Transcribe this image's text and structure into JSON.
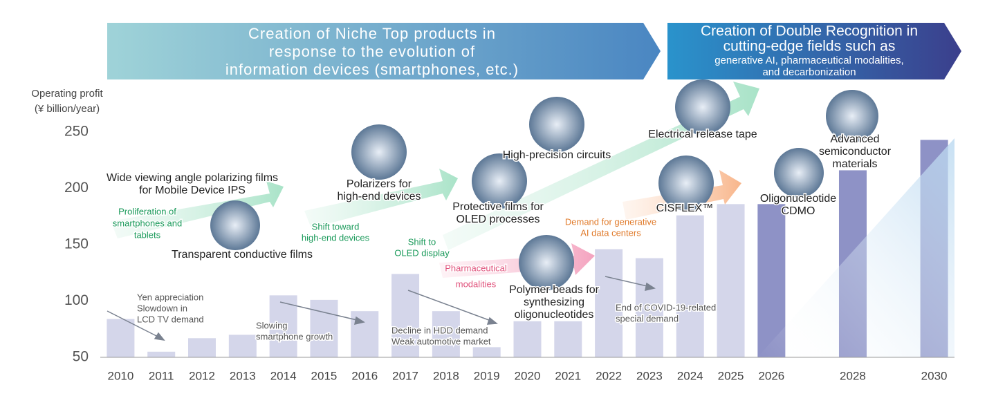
{
  "chart_data": {
    "type": "bar",
    "banner_left": [
      "Creation of Niche Top products in",
      "response to the evolution of",
      "information devices (smartphones, etc.)"
    ],
    "banner_right": {
      "title": [
        "Creation of Double Recognition in",
        "cutting-edge fields such as"
      ],
      "subtitle": [
        "generative AI, pharmaceutical modalities,",
        "and decarbonization"
      ]
    },
    "y_label": [
      "Operating profit",
      "(¥ billion/year)"
    ],
    "x": [
      2010,
      2011,
      2012,
      2013,
      2014,
      2015,
      2016,
      2017,
      2018,
      2019,
      2020,
      2021,
      2022,
      2023,
      2024,
      2025,
      2026,
      2028,
      2030
    ],
    "values": [
      84,
      55,
      67,
      70,
      105,
      101,
      91,
      124,
      91,
      59,
      82,
      82,
      146,
      138,
      176,
      186,
      186,
      216,
      243
    ],
    "colors": [
      "#d4d6ea",
      "#d4d6ea",
      "#d4d6ea",
      "#d4d6ea",
      "#d4d6ea",
      "#d4d6ea",
      "#d4d6ea",
      "#d4d6ea",
      "#d4d6ea",
      "#d4d6ea",
      "#d4d6ea",
      "#d4d6ea",
      "#d4d6ea",
      "#d4d6ea",
      "#d4d6ea",
      "#d4d6ea",
      "#8e92c6",
      "#8e92c6",
      "#8e92c6"
    ],
    "xlim": [
      2009.5,
      2030.5
    ],
    "xticks": [
      2010,
      2011,
      2012,
      2013,
      2014,
      2015,
      2016,
      2017,
      2018,
      2019,
      2020,
      2021,
      2022,
      2023,
      2024,
      2025,
      2026,
      2028,
      2030
    ],
    "ylim": [
      50,
      250
    ],
    "yticks": [
      50,
      100,
      150,
      200,
      250
    ],
    "annotations": [
      {
        "color": "#222222",
        "lines": [
          "Wide viewing angle polarizing films",
          "for Mobile Device IPS"
        ]
      },
      {
        "color": "#222222",
        "lines": [
          "Transparent conductive films"
        ]
      },
      {
        "color": "#222222",
        "lines": [
          "Polarizers for",
          "high-end devices"
        ]
      },
      {
        "color": "#222222",
        "lines": [
          "Protective films for",
          "OLED processes"
        ]
      },
      {
        "color": "#222222",
        "lines": [
          "High-precision circuits"
        ]
      },
      {
        "color": "#222222",
        "lines": [
          "Electrical release tape"
        ]
      },
      {
        "color": "#222222",
        "lines": [
          "Polymer beads for",
          "synthesizing",
          "oligonucleotides"
        ]
      },
      {
        "color": "#222222",
        "lines": [
          "CISFLEX™"
        ]
      },
      {
        "color": "#222222",
        "lines": [
          "Oligonucleotide",
          "CDMO"
        ]
      },
      {
        "color": "#222222",
        "lines": [
          "Advanced",
          "semiconductor",
          "materials"
        ]
      },
      {
        "color": "#1a9a5a",
        "lines": [
          "Proliferation of",
          "smartphones and",
          "tablets"
        ]
      },
      {
        "color": "#1a9a5a",
        "lines": [
          "Shift toward",
          "high-end devices"
        ]
      },
      {
        "color": "#1a9a5a",
        "lines": [
          "Shift to",
          "OLED display"
        ]
      },
      {
        "color": "#e0507a",
        "lines": [
          "Pharmaceutical",
          "modalities"
        ]
      },
      {
        "color": "#e07a2a",
        "lines": [
          "Demand for generative",
          "AI data centers"
        ]
      },
      {
        "color": "#555555",
        "lines": [
          "Yen appreciation",
          "Slowdown in",
          "LCD TV demand"
        ]
      },
      {
        "color": "#555555",
        "lines": [
          "Slowing",
          "smartphone growth"
        ]
      },
      {
        "color": "#555555",
        "lines": [
          "Decline in HDD demand",
          "Weak automotive market"
        ]
      },
      {
        "color": "#555555",
        "lines": [
          "End of COVID-19-related",
          "special demand"
        ]
      }
    ]
  }
}
